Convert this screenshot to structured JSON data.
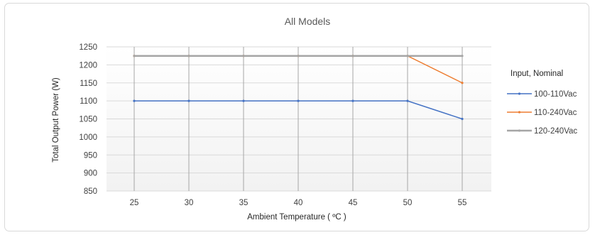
{
  "chart_data": {
    "type": "line",
    "title": "All Models",
    "xlabel": "Ambient Temperature ( ºC )",
    "ylabel": "Total Output Power (W)",
    "x": [
      25,
      30,
      35,
      40,
      45,
      50,
      55
    ],
    "ylim": [
      850,
      1250
    ],
    "yticks": [
      850,
      900,
      950,
      1000,
      1050,
      1100,
      1150,
      1200,
      1250
    ],
    "grid": true,
    "legend_title": "Input, Nominal",
    "legend_position": "right",
    "series": [
      {
        "name": "100-110Vac",
        "color": "#4472C4",
        "values": [
          1100,
          1100,
          1100,
          1100,
          1100,
          1100,
          1050
        ]
      },
      {
        "name": "110-240Vac",
        "color": "#ED7D31",
        "values": [
          1225,
          1225,
          1225,
          1225,
          1225,
          1225,
          1150
        ]
      },
      {
        "name": "120-240Vac",
        "color": "#A5A5A5",
        "values": [
          1225,
          1225,
          1225,
          1225,
          1225,
          1225,
          1225
        ]
      }
    ]
  }
}
